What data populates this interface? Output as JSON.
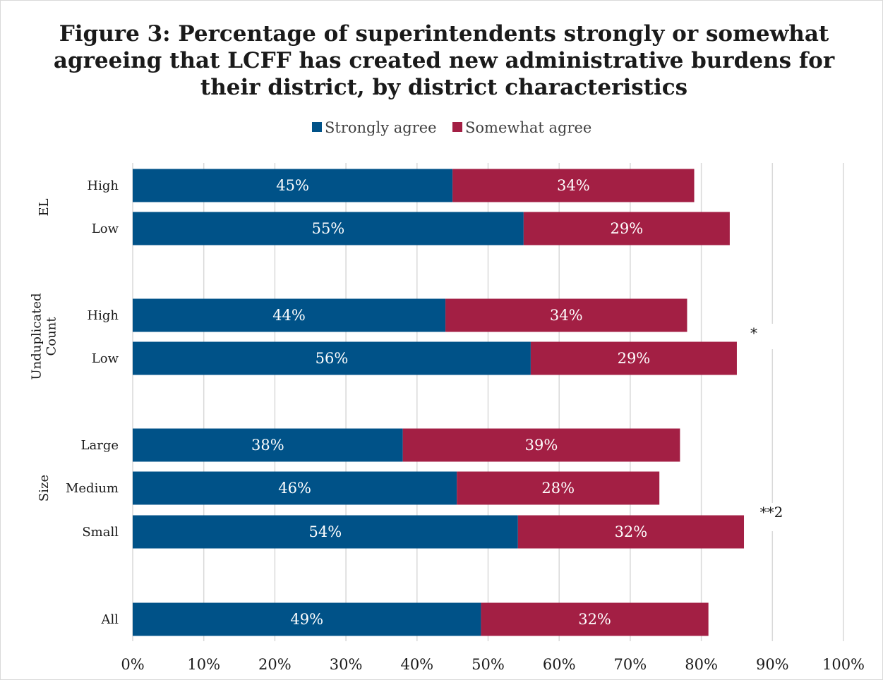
{
  "chart_data": {
    "type": "bar",
    "orientation": "horizontal",
    "stacked": true,
    "title_lines": [
      "Figure 3: Percentage of superintendents strongly or somewhat",
      "agreeing that LCFF has created new administrative burdens for",
      "their district, by district characteristics"
    ],
    "legend": {
      "placement": "top",
      "items": [
        {
          "label": "Strongly agree",
          "color": "#005288"
        },
        {
          "label": "Somewhat agree",
          "color": "#A31F44"
        }
      ]
    },
    "xlim": [
      0,
      100
    ],
    "x_ticks": [
      "0%",
      "10%",
      "20%",
      "30%",
      "40%",
      "50%",
      "60%",
      "70%",
      "80%",
      "90%",
      "100%"
    ],
    "grid": true,
    "groups": [
      {
        "label": "EL",
        "rows": [
          {
            "category": "High",
            "strongly": 45,
            "strongly_label": "45%",
            "somewhat": 34,
            "somewhat_label": "34%"
          },
          {
            "category": "Low",
            "strongly": 55,
            "strongly_label": "55%",
            "somewhat": 29,
            "somewhat_label": "29%"
          }
        ]
      },
      {
        "label": "Unduplicated Count",
        "label_lines": [
          "Unduplicated",
          "Count"
        ],
        "annotation": "*",
        "rows": [
          {
            "category": "High",
            "strongly": 44,
            "strongly_label": "44%",
            "somewhat": 34,
            "somewhat_label": "34%"
          },
          {
            "category": "Low",
            "strongly": 56,
            "strongly_label": "56%",
            "somewhat": 29,
            "somewhat_label": "29%"
          }
        ]
      },
      {
        "label": "Size",
        "annotation": "**2",
        "rows": [
          {
            "category": "Large",
            "strongly": 38,
            "strongly_label": "38%",
            "somewhat": 39,
            "somewhat_label": "39%"
          },
          {
            "category": "Medium",
            "strongly": 45.6,
            "strongly_label": "46%",
            "somewhat": 28.5,
            "somewhat_label": "28%"
          },
          {
            "category": "Small",
            "strongly": 54.2,
            "strongly_label": "54%",
            "somewhat": 31.8,
            "somewhat_label": "32%"
          }
        ]
      },
      {
        "label": "",
        "rows": [
          {
            "category": "All",
            "strongly": 49,
            "strongly_label": "49%",
            "somewhat": 32,
            "somewhat_label": "32%"
          }
        ]
      }
    ]
  }
}
